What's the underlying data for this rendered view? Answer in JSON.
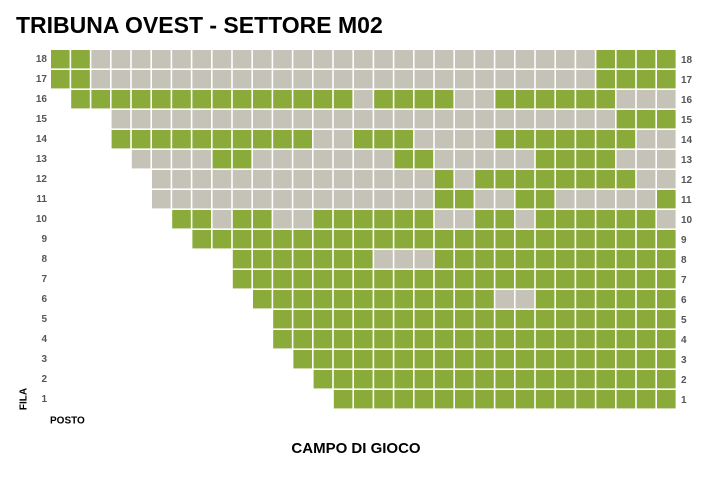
{
  "header": {
    "title": "TRIBUNA OVEST - SETTORE M02"
  },
  "axis": {
    "row_label": "FILA",
    "seat_label": "POSTO",
    "field": "CAMPO DI GIOCO"
  },
  "status_colors": {
    "a": "#8aaa3a",
    "o": "#c5c2b8"
  },
  "rows": [
    {
      "label": "18",
      "seats": "aaoooooooooooooooooooooooooaaaa"
    },
    {
      "label": "17",
      "seats": "aaoooooooooooooooooooooooooaaaa"
    },
    {
      "label": "16",
      "seats": "aaaaaaaaaaaaaaoaaaaooaaaaaaooo"
    },
    {
      "label": "15",
      "seats": "oooooooooooooooooooooooooaaa"
    },
    {
      "label": "14",
      "seats": "aaaaaaaaaaooaaaooooaaaaaaaoo"
    },
    {
      "label": "13",
      "seats": "ooooaaoooooooaaoooooaaaaooo"
    },
    {
      "label": "12",
      "seats": "ooooooooooooooaoaaaaaaaaoo"
    },
    {
      "label": "11",
      "seats": "ooooooooooooooaaooaaoooooa"
    },
    {
      "label": "10",
      "seats": "aaoaaooaaaaaaooaaoaaaaaao"
    },
    {
      "label": "9",
      "seats": "aaaaaaaaaaaaaaaaaaaaaaaa"
    },
    {
      "label": "8",
      "seats": "aaaaaaaoooaaaaaaaaaaaa"
    },
    {
      "label": "7",
      "seats": "aaaaaaaaaaaaaaaaaaaaaa"
    },
    {
      "label": "6",
      "seats": "aaaaaaaaaaaaooaaaaaaa"
    },
    {
      "label": "5",
      "seats": "aaaaaaaaaaaaaaaaaaaa"
    },
    {
      "label": "4",
      "seats": "aaaaaaaaaaaaaaaaaaaa"
    },
    {
      "label": "3",
      "seats": "aaaaaaaaaaaaaaaaaaa"
    },
    {
      "label": "2",
      "seats": "aaaaaaaaaaaaaaaaaa"
    },
    {
      "label": "1",
      "seats": "aaaaaaaaaaaaaaaaa"
    }
  ]
}
